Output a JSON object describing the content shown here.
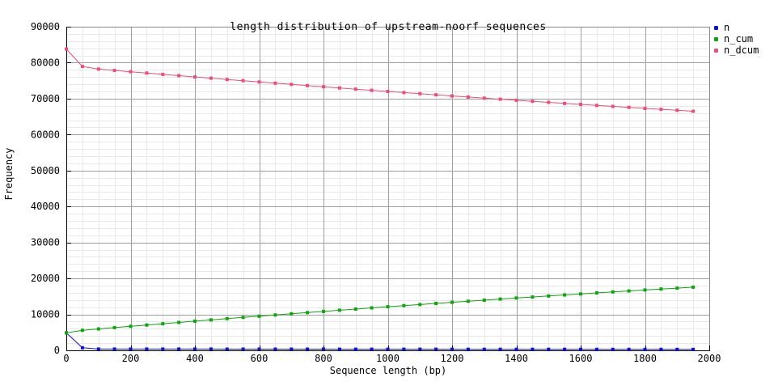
{
  "chart_data": {
    "type": "line",
    "title": "length distribution of upstream-noorf sequences",
    "xlabel": "Sequence length (bp)",
    "ylabel": "Frequency",
    "xlim": [
      0,
      2000
    ],
    "ylim": [
      0,
      90000
    ],
    "xticks": [
      0,
      200,
      400,
      600,
      800,
      1000,
      1200,
      1400,
      1600,
      1800,
      2000
    ],
    "yticks": [
      0,
      10000,
      20000,
      30000,
      40000,
      50000,
      60000,
      70000,
      80000,
      90000
    ],
    "x_minor_step": 50,
    "y_minor_step": 2000,
    "layout": {
      "grid": true,
      "legend_position": "outside-top-right",
      "palette": {
        "background": "#ffffff",
        "grid_major": "#9e9e9e",
        "grid_minor": "#e8e8e8",
        "border_dark": "#000000",
        "border_light": "#8a8a8a",
        "text": "#000000"
      }
    },
    "x": [
      0,
      50,
      100,
      150,
      200,
      250,
      300,
      350,
      400,
      450,
      500,
      550,
      600,
      650,
      700,
      750,
      800,
      850,
      900,
      950,
      1000,
      1050,
      1100,
      1150,
      1200,
      1250,
      1300,
      1350,
      1400,
      1450,
      1500,
      1550,
      1600,
      1650,
      1700,
      1750,
      1800,
      1850,
      1900,
      1950
    ],
    "series": [
      {
        "name": "n",
        "color": "#0f0fd8",
        "marker": "square",
        "values": [
          4852,
          731,
          371,
          368,
          365,
          362,
          359,
          356,
          353,
          350,
          347,
          344,
          341,
          338,
          335,
          332,
          329,
          326,
          323,
          320,
          317,
          314,
          311,
          308,
          305,
          302,
          299,
          296,
          293,
          290,
          287,
          284,
          281,
          278,
          275,
          272,
          269,
          266,
          263,
          260
        ]
      },
      {
        "name": "n_cum",
        "color": "#0da60d",
        "marker": "square",
        "values": [
          4852,
          5583,
          5954,
          6322,
          6687,
          7049,
          7408,
          7764,
          8117,
          8467,
          8814,
          9158,
          9499,
          9837,
          10172,
          10504,
          10833,
          11159,
          11482,
          11802,
          12119,
          12433,
          12744,
          13052,
          13357,
          13659,
          13958,
          14254,
          14547,
          14837,
          15124,
          15408,
          15689,
          15967,
          16242,
          16514,
          16783,
          17049,
          17312,
          17572
        ]
      },
      {
        "name": "n_dcum",
        "color": "#ee4d79",
        "marker": "square",
        "values": [
          83800,
          78948,
          78217,
          77846,
          77478,
          77113,
          76751,
          76392,
          76036,
          75683,
          75333,
          74986,
          74642,
          74301,
          73963,
          73628,
          73296,
          72967,
          72641,
          72318,
          71998,
          71681,
          71367,
          71056,
          70748,
          70443,
          70141,
          69842,
          69546,
          69253,
          68963,
          68676,
          68392,
          68111,
          67833,
          67558,
          67286,
          67017,
          66751,
          66488
        ]
      }
    ]
  }
}
